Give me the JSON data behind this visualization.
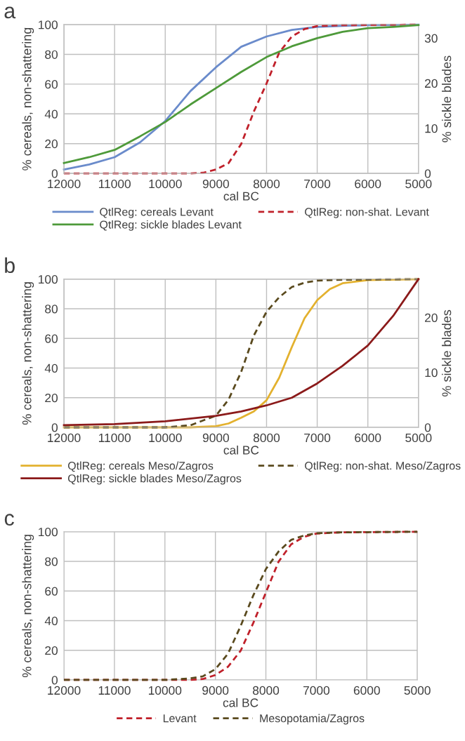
{
  "chart_data": [
    {
      "type": "line",
      "title": "a",
      "xlabel": "cal BC",
      "ylabel": "% cereals, non-shattering",
      "y2label": "% sickle blades",
      "xlim": [
        12000,
        5000
      ],
      "xticks": [
        12000,
        11000,
        10000,
        9000,
        8000,
        7000,
        6000,
        5000
      ],
      "ylim": [
        0,
        100
      ],
      "yticks": [
        0,
        20,
        40,
        60,
        80,
        100
      ],
      "y2lim": [
        0,
        33
      ],
      "y2ticks": [
        0,
        10,
        20,
        30
      ],
      "grid": true,
      "legend": "bottom",
      "series": [
        {
          "name": "QtlReg: cereals Levant",
          "color": "#6a8bcb",
          "line_style": "solid",
          "x": [
            12000,
            11500,
            11000,
            10500,
            10000,
            9500,
            9000,
            8500,
            8000,
            7500,
            7000,
            6500,
            6000,
            5000
          ],
          "values": [
            2.6,
            6,
            10.9,
            20.8,
            35.2,
            55.4,
            71.3,
            85.1,
            92,
            96.4,
            98.4,
            99.2,
            99.6,
            100
          ]
        },
        {
          "name": "QtlReg: non-shat. Levant",
          "color": "#c0202a",
          "line_style": "dashed",
          "x": [
            12000,
            11000,
            10000,
            9500,
            9250,
            9000,
            8750,
            8500,
            8250,
            8000,
            7750,
            7500,
            7250,
            7000,
            6500,
            5000
          ],
          "values": [
            0,
            0,
            0,
            0,
            0.4,
            2.6,
            6.9,
            19.8,
            41.6,
            60.4,
            81.2,
            92,
            97,
            99,
            99.6,
            100
          ]
        },
        {
          "name": "QtlReg: sickle blades Levant",
          "color": "#4e9a3a",
          "line_style": "solid",
          "axis": "y2",
          "x": [
            12000,
            11500,
            11000,
            10500,
            10000,
            9500,
            9000,
            8500,
            8000,
            7500,
            7000,
            6500,
            6000,
            5500,
            5000
          ],
          "values": [
            2.3,
            3.6,
            5.2,
            8.2,
            11.4,
            15.3,
            18.9,
            22.5,
            25.8,
            28.2,
            30.0,
            31.4,
            32.2,
            32.5,
            32.9
          ]
        }
      ]
    },
    {
      "type": "line",
      "title": "b",
      "xlabel": "cal BC",
      "ylabel": "% cereals, non-shattering",
      "y2label": "% sickle blades",
      "xlim": [
        12000,
        5000
      ],
      "xticks": [
        12000,
        11000,
        10000,
        9000,
        8000,
        7000,
        6000,
        5000
      ],
      "ylim": [
        0,
        100
      ],
      "yticks": [
        0,
        20,
        40,
        60,
        80,
        100
      ],
      "y2lim": [
        0,
        27
      ],
      "y2ticks": [
        0,
        10,
        20
      ],
      "grid": true,
      "legend": "bottom",
      "series": [
        {
          "name": "QtlReg: cereals Meso/Zagros",
          "color": "#e3b12e",
          "line_style": "solid",
          "x": [
            12000,
            11000,
            10000,
            9500,
            9000,
            8750,
            8500,
            8250,
            8000,
            7750,
            7500,
            7250,
            7000,
            6750,
            6500,
            6000,
            5000
          ],
          "values": [
            0,
            0,
            0,
            0,
            0.8,
            2.6,
            6.5,
            10.8,
            18.3,
            33.5,
            54.2,
            73.6,
            85.8,
            93.3,
            97.2,
            99.4,
            100
          ]
        },
        {
          "name": "QtlReg: non-shat. Meso/Zagros",
          "color": "#5a4a1e",
          "line_style": "dashed",
          "x": [
            12000,
            11000,
            10000,
            9500,
            9000,
            8750,
            8500,
            8250,
            8000,
            7750,
            7500,
            7250,
            7000,
            6500,
            5000
          ],
          "values": [
            0,
            0,
            0,
            1.4,
            7.9,
            18.7,
            37.5,
            62,
            78,
            87.8,
            94.7,
            97.6,
            99,
            99.6,
            100
          ]
        },
        {
          "name": "QtlReg: sickle blades Meso/Zagros",
          "color": "#8b1a1a",
          "line_style": "solid",
          "axis": "y2",
          "x": [
            12000,
            11000,
            10000,
            9000,
            8500,
            8000,
            7500,
            7000,
            6500,
            6000,
            5500,
            5000
          ],
          "values": [
            0.4,
            0.6,
            1.1,
            2.1,
            2.9,
            4.0,
            5.4,
            8.0,
            11.2,
            14.9,
            20.3,
            27.0
          ]
        }
      ]
    },
    {
      "type": "line",
      "title": "c",
      "xlabel": "cal BC",
      "ylabel": "% cereals, non-shattering",
      "xlim": [
        12000,
        5000
      ],
      "xticks": [
        12000,
        11000,
        10000,
        9000,
        8000,
        7000,
        6000,
        5000
      ],
      "ylim": [
        0,
        100
      ],
      "yticks": [
        0,
        20,
        40,
        60,
        80,
        100
      ],
      "grid": true,
      "legend": "bottom",
      "series": [
        {
          "name": "Levant",
          "color": "#c0202a",
          "line_style": "dashed",
          "x": [
            12000,
            11000,
            10000,
            9500,
            9250,
            9000,
            8750,
            8500,
            8250,
            8000,
            7750,
            7500,
            7250,
            7000,
            6500,
            5000
          ],
          "values": [
            0,
            0,
            0,
            0,
            0.6,
            3.3,
            8.9,
            19.7,
            38.4,
            59,
            79.7,
            91.5,
            96.5,
            98.8,
            99.6,
            100
          ]
        },
        {
          "name": "Mesopotamia/Zagros",
          "color": "#5a4a1e",
          "line_style": "dashed",
          "x": [
            12000,
            11000,
            10000,
            9500,
            9250,
            9000,
            8750,
            8500,
            8250,
            8000,
            7750,
            7500,
            7250,
            7000,
            6500,
            5000
          ],
          "values": [
            0,
            0,
            0,
            1.0,
            2.4,
            7.3,
            17.7,
            36.4,
            57,
            74.8,
            86.6,
            94.5,
            97.4,
            99,
            99.6,
            100
          ]
        }
      ]
    }
  ]
}
